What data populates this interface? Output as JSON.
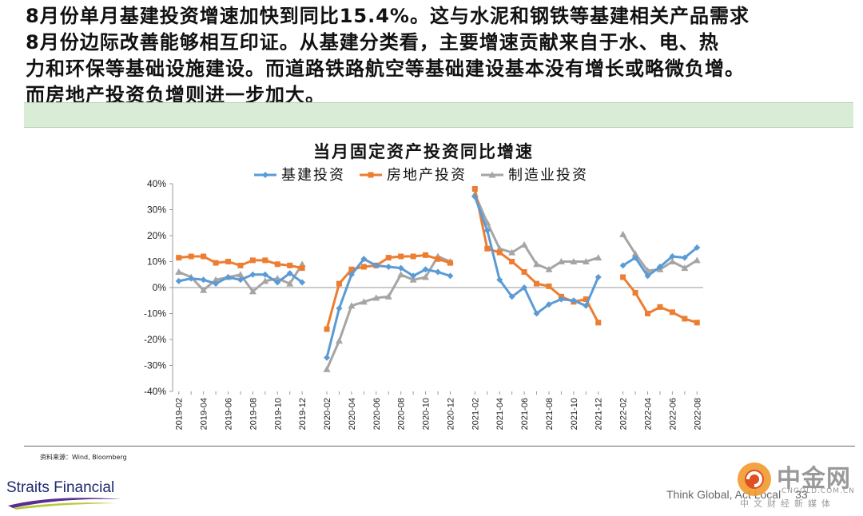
{
  "headline": "8月份单月基建投资增速加快到同比15.4%。这与水泥和钢铁等基建相关产品需求\n8月份边际改善能够相互印证。从基建分类看，主要增速贡献来自于水、电、热\n力和环保等基础设施建设。而道路铁路航空等基础建设基本没有增长或略微负增。\n而房地产投资负增则进一步加大。",
  "footer": {
    "source": "资料来源：Wind, Bloomberg",
    "brand": "Straits Financial",
    "tagline": "Think Global, Act Local",
    "page_number": "33"
  },
  "watermark": {
    "name": "中金网",
    "site": "CNGOLD.COM.CN",
    "subtitle": "中文财经新媒体"
  },
  "colors": {
    "infrastructure": "#5b9bd5",
    "real_estate": "#ed7d31",
    "manufacturing": "#a5a5a5",
    "band": "#d8ecd6",
    "brand": "#1d2a6e"
  },
  "chart_data": {
    "type": "line",
    "title": "当月固定资产投资同比增速",
    "ylim": [
      -40,
      40
    ],
    "yticks": [
      -40,
      -30,
      -20,
      -10,
      0,
      10,
      20,
      30,
      40
    ],
    "ytick_labels": [
      "-40%",
      "-30%",
      "-20%",
      "-10%",
      "0%",
      "10%",
      "20%",
      "30%",
      "40%"
    ],
    "grid": false,
    "legend_position": "top",
    "categories": [
      "2019-02",
      "2019-03",
      "2019-04",
      "2019-05",
      "2019-06",
      "2019-07",
      "2019-08",
      "2019-09",
      "2019-10",
      "2019-11",
      "2019-12",
      "2020-02",
      "2020-03",
      "2020-04",
      "2020-05",
      "2020-06",
      "2020-07",
      "2020-08",
      "2020-09",
      "2020-10",
      "2020-11",
      "2020-12",
      "2021-02",
      "2021-03",
      "2021-04",
      "2021-05",
      "2021-06",
      "2021-07",
      "2021-08",
      "2021-09",
      "2021-10",
      "2021-11",
      "2021-12",
      "2022-02",
      "2022-03",
      "2022-04",
      "2022-05",
      "2022-06",
      "2022-07",
      "2022-08"
    ],
    "tick_labels": [
      "2019-02",
      "2019-04",
      "2019-06",
      "2019-08",
      "2019-10",
      "2019-12",
      "2020-02",
      "2020-04",
      "2020-06",
      "2020-08",
      "2020-10",
      "2020-12",
      "2021-02",
      "2021-04",
      "2021-06",
      "2021-08",
      "2021-10",
      "2021-12",
      "2022-02",
      "2022-04",
      "2022-06",
      "2022-08"
    ],
    "series": [
      {
        "name": "基建投资",
        "color": "#5b9bd5",
        "marker": "diamond",
        "values": [
          2.5,
          3.5,
          3.0,
          1.5,
          4.0,
          3.0,
          5.0,
          5.0,
          2.0,
          5.5,
          2.0,
          -27.0,
          -8.0,
          5.0,
          11.0,
          8.5,
          8.0,
          7.5,
          4.5,
          7.0,
          6.0,
          4.5,
          35.0,
          22.0,
          3.0,
          -3.5,
          0.0,
          -10.0,
          -6.5,
          -4.5,
          -5.0,
          -7.0,
          4.0,
          8.5,
          11.5,
          4.5,
          8.0,
          12.0,
          11.5,
          15.4
        ]
      },
      {
        "name": "房地产投资",
        "color": "#ed7d31",
        "marker": "square",
        "values": [
          11.5,
          12.0,
          12.0,
          9.5,
          10.0,
          8.5,
          10.5,
          10.5,
          9.0,
          8.5,
          7.5,
          -16.0,
          1.5,
          7.0,
          8.0,
          8.5,
          11.5,
          12.0,
          12.0,
          12.5,
          11.0,
          9.5,
          38.0,
          15.0,
          13.5,
          10.0,
          6.0,
          1.5,
          0.5,
          -3.5,
          -5.5,
          -4.5,
          -13.5,
          4.0,
          -2.0,
          -10.0,
          -7.5,
          -9.5,
          -12.0,
          -13.5
        ]
      },
      {
        "name": "制造业投资",
        "color": "#a5a5a5",
        "marker": "triangle",
        "values": [
          6.0,
          4.0,
          -1.0,
          3.0,
          4.0,
          5.0,
          -1.5,
          2.5,
          3.5,
          1.5,
          9.0,
          -31.5,
          -20.5,
          -7.0,
          -5.5,
          -4.0,
          -3.5,
          5.0,
          3.0,
          4.0,
          12.0,
          10.0,
          36.0,
          25.0,
          15.0,
          13.5,
          16.5,
          9.0,
          7.0,
          10.0,
          10.0,
          10.0,
          11.5,
          20.5,
          13.0,
          6.5,
          7.0,
          10.0,
          7.5,
          10.5
        ]
      }
    ]
  }
}
